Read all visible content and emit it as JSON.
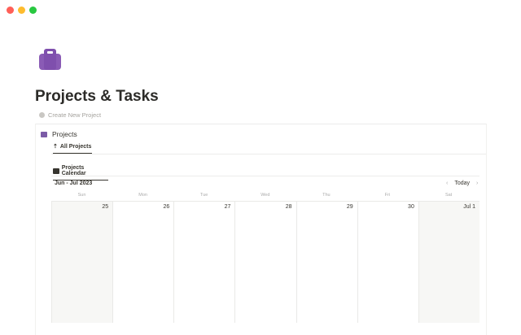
{
  "window": {
    "controls": [
      {
        "name": "close",
        "color": "#ff5f57"
      },
      {
        "name": "minimize",
        "color": "#febc2e"
      },
      {
        "name": "maximize",
        "color": "#28c840"
      }
    ]
  },
  "page": {
    "icon": "briefcase-icon",
    "title": "Projects & Tasks",
    "create_label": "Create New Project"
  },
  "database": {
    "title": "Projects",
    "tab": "All Projects",
    "view_tab": "Projects Calendar"
  },
  "calendar": {
    "month": "Jun - Jul 2023",
    "today": "Today",
    "weekdays": [
      "Sun",
      "Mon",
      "Tue",
      "Wed",
      "Thu",
      "Fri",
      "Sat"
    ],
    "days": [
      "25",
      "26",
      "27",
      "28",
      "29",
      "30",
      "Jul 1"
    ]
  },
  "colors": {
    "accent": "#8a5bb5"
  }
}
